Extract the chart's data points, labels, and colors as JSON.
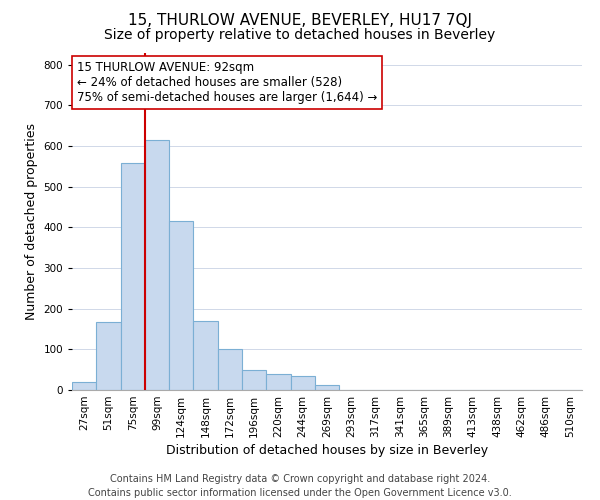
{
  "title": "15, THURLOW AVENUE, BEVERLEY, HU17 7QJ",
  "subtitle": "Size of property relative to detached houses in Beverley",
  "xlabel": "Distribution of detached houses by size in Beverley",
  "ylabel": "Number of detached properties",
  "bin_labels": [
    "27sqm",
    "51sqm",
    "75sqm",
    "99sqm",
    "124sqm",
    "148sqm",
    "172sqm",
    "196sqm",
    "220sqm",
    "244sqm",
    "269sqm",
    "293sqm",
    "317sqm",
    "341sqm",
    "365sqm",
    "389sqm",
    "413sqm",
    "438sqm",
    "462sqm",
    "486sqm",
    "510sqm"
  ],
  "bar_values": [
    20,
    168,
    558,
    615,
    415,
    170,
    102,
    50,
    40,
    34,
    12,
    0,
    0,
    0,
    0,
    0,
    0,
    0,
    0,
    0,
    0
  ],
  "bar_color": "#c8d9ee",
  "bar_edge_color": "#7bafd4",
  "vline_color": "#cc0000",
  "vline_x": 2.5,
  "annotation_text": "15 THURLOW AVENUE: 92sqm\n← 24% of detached houses are smaller (528)\n75% of semi-detached houses are larger (1,644) →",
  "annotation_box_facecolor": "#ffffff",
  "annotation_box_edgecolor": "#cc0000",
  "ylim": [
    0,
    830
  ],
  "yticks": [
    0,
    100,
    200,
    300,
    400,
    500,
    600,
    700,
    800
  ],
  "footer_text": "Contains HM Land Registry data © Crown copyright and database right 2024.\nContains public sector information licensed under the Open Government Licence v3.0.",
  "title_fontsize": 11,
  "subtitle_fontsize": 10,
  "axis_label_fontsize": 9,
  "tick_fontsize": 7.5,
  "annotation_fontsize": 8.5,
  "footer_fontsize": 7
}
